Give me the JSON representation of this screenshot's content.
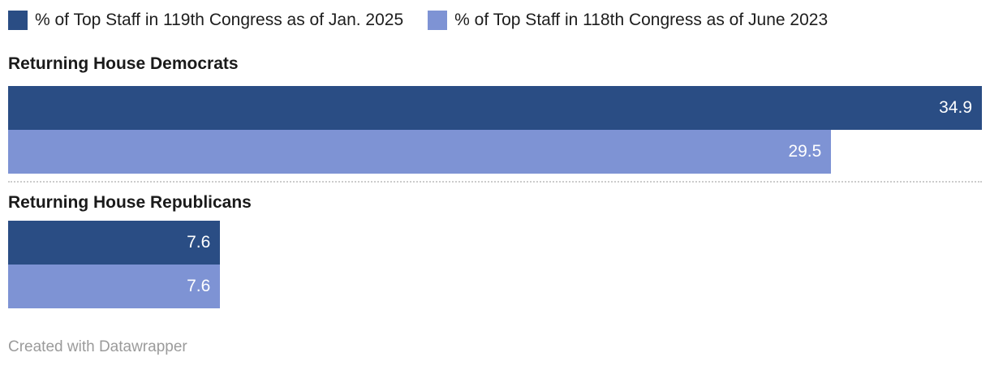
{
  "legend": {
    "items": [
      {
        "label": "% of Top Staff in 119th Congress as of Jan. 2025",
        "color": "#2a4d84"
      },
      {
        "label": "% of Top Staff in 118th Congress as of June 2023",
        "color": "#7e93d4"
      }
    ]
  },
  "chart_data": {
    "type": "bar",
    "orientation": "horizontal",
    "categories": [
      "Returning House Democrats",
      "Returning House Republicans"
    ],
    "series": [
      {
        "name": "% of Top Staff in 119th Congress as of Jan. 2025",
        "color": "#2a4d84",
        "values": [
          34.9,
          7.6
        ]
      },
      {
        "name": "% of Top Staff in 118th Congress as of June 2023",
        "color": "#7e93d4",
        "values": [
          29.5,
          7.6
        ]
      }
    ],
    "xlim": [
      0,
      34.9
    ],
    "value_label_position": "inside-end",
    "grid": false,
    "legend_position": "top"
  },
  "footer": {
    "credit": "Created with Datawrapper"
  }
}
